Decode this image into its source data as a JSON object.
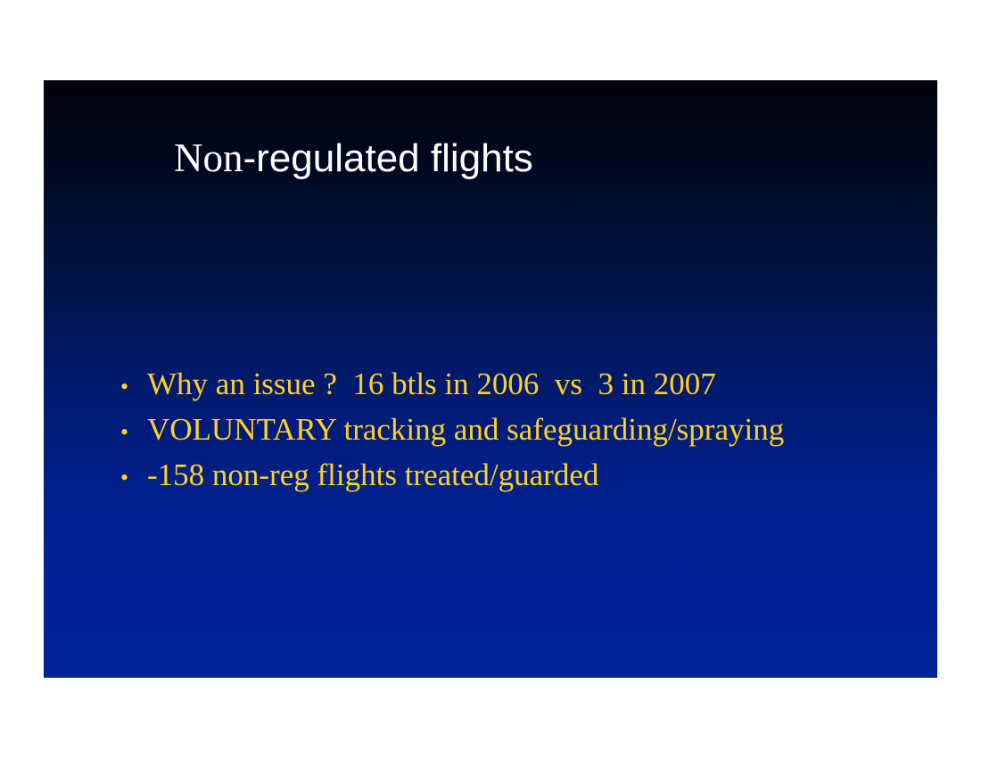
{
  "slide": {
    "title_part1": "Non",
    "title_part2": "-regulated flights",
    "bullets": [
      "Why an issue ?  16 btls in 2006  vs  3 in 2007",
      "VOLUNTARY tracking and safeguarding/spraying",
      "-158 non-reg flights treated/guarded"
    ],
    "bullet_glyph": "•"
  },
  "colors": {
    "title": "#ffffff",
    "bullet_text": "#ffd21e",
    "background_top": "#00020d",
    "background_bottom": "#002399"
  }
}
